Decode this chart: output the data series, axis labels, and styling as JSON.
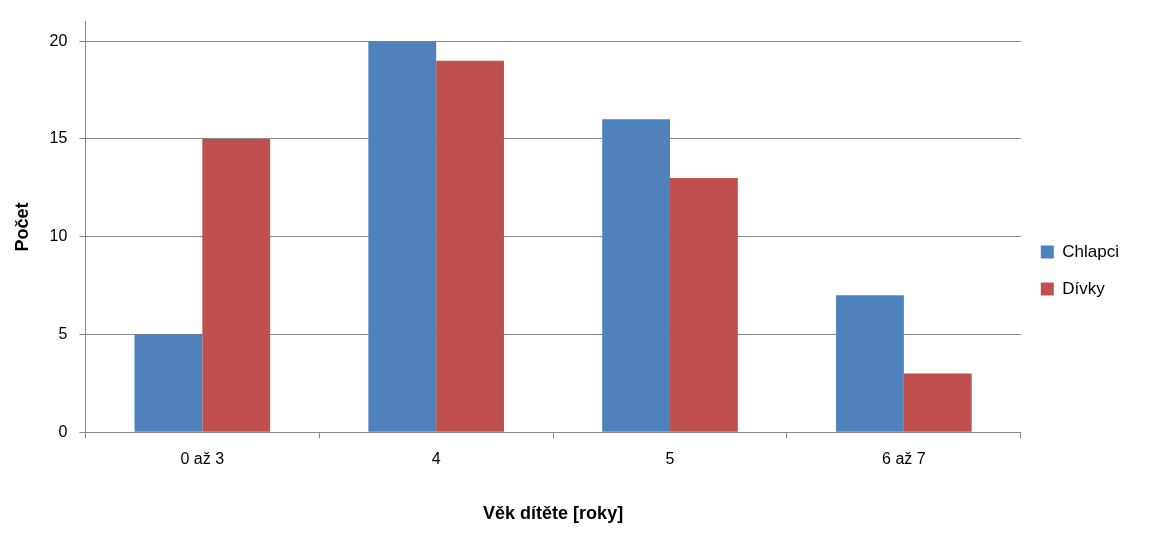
{
  "chart_data": {
    "type": "bar",
    "xlabel": "Věk dítěte [roky]",
    "ylabel": "Počet",
    "categories": [
      "0 až 3",
      "4",
      "5",
      "6 až 7"
    ],
    "series": [
      {
        "name": "Chlapci",
        "color": "#4f81bd",
        "values": [
          5,
          20,
          16,
          7
        ]
      },
      {
        "name": "Dívky",
        "color": "#c0504d",
        "values": [
          15,
          19,
          13,
          3
        ]
      }
    ],
    "ylim": [
      0,
      21
    ],
    "yticks": [
      0,
      5,
      10,
      15,
      20
    ],
    "grid": "y",
    "legend": "right"
  }
}
